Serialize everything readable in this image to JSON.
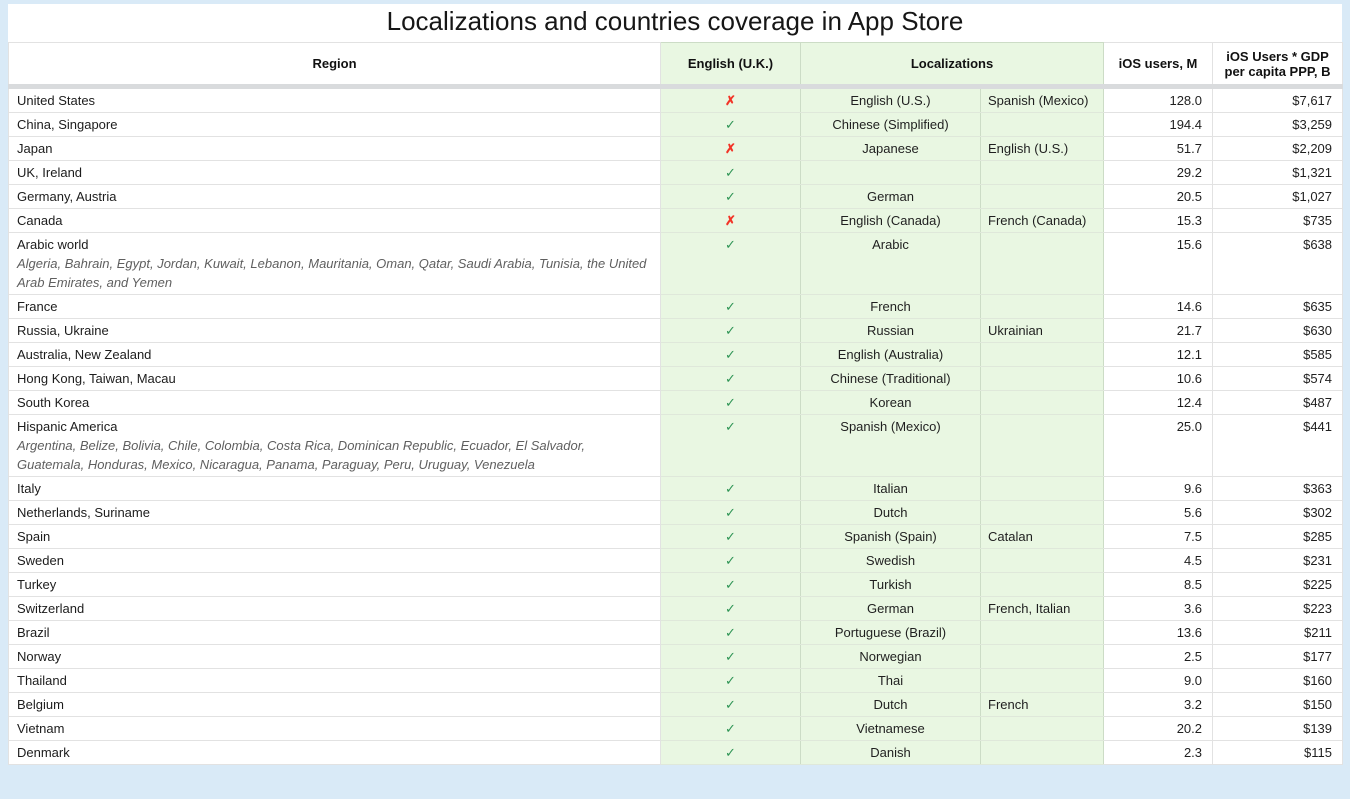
{
  "title": "Localizations and countries coverage in App Store",
  "marks": {
    "yes": "✓",
    "no": "✗"
  },
  "colors": {
    "page_background": "#d9eaf7",
    "localization_column_background": "#e9f7e2",
    "check_green": "#2f9555",
    "cross_red": "#f23427"
  },
  "table": {
    "headers": {
      "region": "Region",
      "english_uk": "English (U.K.)",
      "localizations": "Localizations",
      "ios_users": "iOS users, M",
      "gdp": "iOS Users * GDP per capita PPP, B"
    },
    "rows": [
      {
        "region": "United States",
        "sub": "",
        "english_uk": "no",
        "loc1": "English (U.S.)",
        "loc2": "Spanish (Mexico)",
        "users": "128.0",
        "gdp": "$7,617"
      },
      {
        "region": "China, Singapore",
        "sub": "",
        "english_uk": "yes",
        "loc1": "Chinese (Simplified)",
        "loc2": "",
        "users": "194.4",
        "gdp": "$3,259"
      },
      {
        "region": "Japan",
        "sub": "",
        "english_uk": "no",
        "loc1": "Japanese",
        "loc2": "English (U.S.)",
        "users": "51.7",
        "gdp": "$2,209"
      },
      {
        "region": "UK, Ireland",
        "sub": "",
        "english_uk": "yes",
        "loc1": "",
        "loc2": "",
        "users": "29.2",
        "gdp": "$1,321"
      },
      {
        "region": "Germany, Austria",
        "sub": "",
        "english_uk": "yes",
        "loc1": "German",
        "loc2": "",
        "users": "20.5",
        "gdp": "$1,027"
      },
      {
        "region": "Canada",
        "sub": "",
        "english_uk": "no",
        "loc1": "English (Canada)",
        "loc2": "French (Canada)",
        "users": "15.3",
        "gdp": "$735"
      },
      {
        "region": "Arabic world",
        "sub": "Algeria, Bahrain, Egypt, Jordan, Kuwait, Lebanon, Mauritania, Oman, Qatar, Saudi Arabia, Tunisia, the United Arab Emirates, and Yemen",
        "english_uk": "yes",
        "loc1": "Arabic",
        "loc2": "",
        "users": "15.6",
        "gdp": "$638"
      },
      {
        "region": "France",
        "sub": "",
        "english_uk": "yes",
        "loc1": "French",
        "loc2": "",
        "users": "14.6",
        "gdp": "$635"
      },
      {
        "region": "Russia, Ukraine",
        "sub": "",
        "english_uk": "yes",
        "loc1": "Russian",
        "loc2": "Ukrainian",
        "users": "21.7",
        "gdp": "$630"
      },
      {
        "region": "Australia, New Zealand",
        "sub": "",
        "english_uk": "yes",
        "loc1": "English (Australia)",
        "loc2": "",
        "users": "12.1",
        "gdp": "$585"
      },
      {
        "region": "Hong Kong, Taiwan, Macau",
        "sub": "",
        "english_uk": "yes",
        "loc1": "Chinese (Traditional)",
        "loc2": "",
        "users": "10.6",
        "gdp": "$574"
      },
      {
        "region": "South Korea",
        "sub": "",
        "english_uk": "yes",
        "loc1": "Korean",
        "loc2": "",
        "users": "12.4",
        "gdp": "$487"
      },
      {
        "region": "Hispanic America",
        "sub": "Argentina, Belize, Bolivia, Chile, Colombia, Costa Rica, Dominican Republic, Ecuador, El Salvador, Guatemala, Honduras, Mexico, Nicaragua, Panama, Paraguay, Peru, Uruguay, Venezuela",
        "english_uk": "yes",
        "loc1": "Spanish (Mexico)",
        "loc2": "",
        "users": "25.0",
        "gdp": "$441"
      },
      {
        "region": "Italy",
        "sub": "",
        "english_uk": "yes",
        "loc1": "Italian",
        "loc2": "",
        "users": "9.6",
        "gdp": "$363"
      },
      {
        "region": "Netherlands, Suriname",
        "sub": "",
        "english_uk": "yes",
        "loc1": "Dutch",
        "loc2": "",
        "users": "5.6",
        "gdp": "$302"
      },
      {
        "region": "Spain",
        "sub": "",
        "english_uk": "yes",
        "loc1": "Spanish (Spain)",
        "loc2": "Catalan",
        "users": "7.5",
        "gdp": "$285"
      },
      {
        "region": "Sweden",
        "sub": "",
        "english_uk": "yes",
        "loc1": "Swedish",
        "loc2": "",
        "users": "4.5",
        "gdp": "$231"
      },
      {
        "region": "Turkey",
        "sub": "",
        "english_uk": "yes",
        "loc1": "Turkish",
        "loc2": "",
        "users": "8.5",
        "gdp": "$225"
      },
      {
        "region": "Switzerland",
        "sub": "",
        "english_uk": "yes",
        "loc1": "German",
        "loc2": "French, Italian",
        "users": "3.6",
        "gdp": "$223"
      },
      {
        "region": "Brazil",
        "sub": "",
        "english_uk": "yes",
        "loc1": "Portuguese (Brazil)",
        "loc2": "",
        "users": "13.6",
        "gdp": "$211"
      },
      {
        "region": "Norway",
        "sub": "",
        "english_uk": "yes",
        "loc1": "Norwegian",
        "loc2": "",
        "users": "2.5",
        "gdp": "$177"
      },
      {
        "region": "Thailand",
        "sub": "",
        "english_uk": "yes",
        "loc1": "Thai",
        "loc2": "",
        "users": "9.0",
        "gdp": "$160"
      },
      {
        "region": "Belgium",
        "sub": "",
        "english_uk": "yes",
        "loc1": "Dutch",
        "loc2": "French",
        "users": "3.2",
        "gdp": "$150"
      },
      {
        "region": "Vietnam",
        "sub": "",
        "english_uk": "yes",
        "loc1": "Vietnamese",
        "loc2": "",
        "users": "20.2",
        "gdp": "$139"
      },
      {
        "region": "Denmark",
        "sub": "",
        "english_uk": "yes",
        "loc1": "Danish",
        "loc2": "",
        "users": "2.3",
        "gdp": "$115"
      }
    ]
  }
}
